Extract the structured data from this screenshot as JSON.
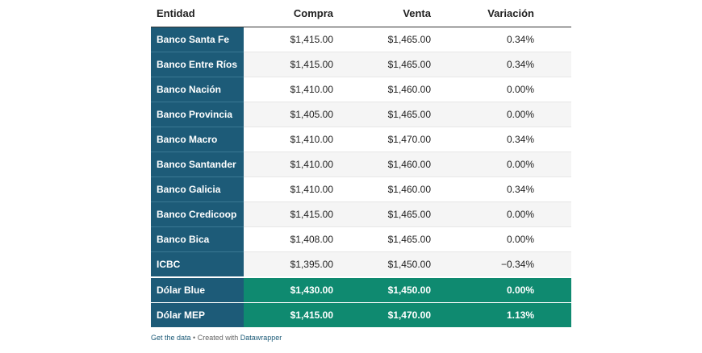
{
  "table": {
    "headers": [
      "Entidad",
      "Compra",
      "Venta",
      "Variación"
    ],
    "rows": [
      {
        "entidad": "Banco Santa Fe",
        "compra": "$1,415.00",
        "venta": "$1,465.00",
        "variacion": "0.34%"
      },
      {
        "entidad": "Banco Entre Ríos",
        "compra": "$1,415.00",
        "venta": "$1,465.00",
        "variacion": "0.34%"
      },
      {
        "entidad": "Banco Nación",
        "compra": "$1,410.00",
        "venta": "$1,460.00",
        "variacion": "0.00%"
      },
      {
        "entidad": "Banco Provincia",
        "compra": "$1,405.00",
        "venta": "$1,465.00",
        "variacion": "0.00%"
      },
      {
        "entidad": "Banco Macro",
        "compra": "$1,410.00",
        "venta": "$1,470.00",
        "variacion": "0.34%"
      },
      {
        "entidad": "Banco Santander",
        "compra": "$1,410.00",
        "venta": "$1,460.00",
        "variacion": "0.00%"
      },
      {
        "entidad": "Banco Galicia",
        "compra": "$1,410.00",
        "venta": "$1,460.00",
        "variacion": "0.34%"
      },
      {
        "entidad": "Banco Credicoop",
        "compra": "$1,415.00",
        "venta": "$1,465.00",
        "variacion": "0.00%"
      },
      {
        "entidad": "Banco Bica",
        "compra": "$1,408.00",
        "venta": "$1,465.00",
        "variacion": "0.00%"
      },
      {
        "entidad": "ICBC",
        "compra": "$1,395.00",
        "venta": "$1,450.00",
        "variacion": "−0.34%"
      },
      {
        "entidad": "Dólar Blue",
        "compra": "$1,430.00",
        "venta": "$1,450.00",
        "variacion": "0.00%",
        "highlight": true
      },
      {
        "entidad": "Dólar MEP",
        "compra": "$1,415.00",
        "venta": "$1,470.00",
        "variacion": "1.13%",
        "highlight": true
      }
    ]
  },
  "footer": {
    "get_data": "Get the data",
    "separator": " • Created with ",
    "tool": "Datawrapper"
  },
  "colors": {
    "entity_column": "#1d5b78",
    "highlight_row": "#0f8a70"
  }
}
